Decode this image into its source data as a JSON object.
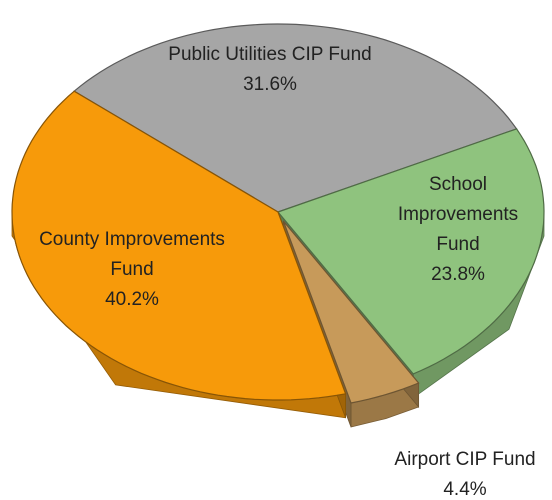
{
  "chart_data": {
    "type": "pie",
    "categories": [
      "Public Utilities CIP Fund",
      "School Improvements Fund",
      "Airport CIP Fund",
      "County Improvements Fund"
    ],
    "values": [
      31.6,
      23.8,
      4.4,
      40.2
    ],
    "value_labels": [
      "31.6%",
      "23.8%",
      "4.4%",
      "40.2%"
    ],
    "colors": [
      "#a6a6a6",
      "#8fc37e",
      "#c79a5a",
      "#f79a0a"
    ]
  }
}
